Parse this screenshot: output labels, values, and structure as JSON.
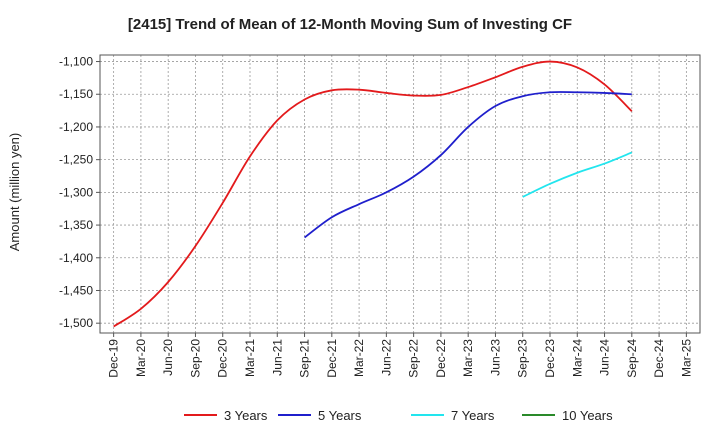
{
  "chart_data": {
    "type": "line",
    "title": "[2415]  Trend of Mean of 12-Month Moving Sum of Investing CF",
    "xlabel": "",
    "ylabel": "Amount (million yen)",
    "x_ticks": [
      "Dec-19",
      "Mar-20",
      "Jun-20",
      "Sep-20",
      "Dec-20",
      "Mar-21",
      "Jun-21",
      "Sep-21",
      "Dec-21",
      "Mar-22",
      "Jun-22",
      "Sep-22",
      "Dec-22",
      "Mar-23",
      "Jun-23",
      "Sep-23",
      "Dec-23",
      "Mar-24",
      "Jun-24",
      "Sep-24",
      "Dec-24",
      "Mar-25"
    ],
    "y_ticks": [
      -1100,
      -1150,
      -1200,
      -1250,
      -1300,
      -1350,
      -1400,
      -1450,
      -1500
    ],
    "y_tick_labels": [
      "-1,100",
      "-1,150",
      "-1,200",
      "-1,250",
      "-1,300",
      "-1,350",
      "-1,400",
      "-1,450",
      "-1,500"
    ],
    "ylim": [
      -1515,
      -1090
    ],
    "grid": true,
    "legend_position": "bottom",
    "series": [
      {
        "name": "3 Years",
        "color": "#e31a1c",
        "x": [
          "Dec-19",
          "Mar-20",
          "Jun-20",
          "Sep-20",
          "Dec-20",
          "Mar-21",
          "Jun-21",
          "Sep-21",
          "Dec-21",
          "Mar-22",
          "Jun-22",
          "Sep-22",
          "Dec-22",
          "Mar-23",
          "Jun-23",
          "Sep-23",
          "Dec-23",
          "Mar-24",
          "Jun-24",
          "Sep-24"
        ],
        "values": [
          -1505,
          -1478,
          -1437,
          -1382,
          -1316,
          -1245,
          -1190,
          -1158,
          -1144,
          -1143,
          -1148,
          -1152,
          -1151,
          -1139,
          -1124,
          -1108,
          -1100,
          -1109,
          -1135,
          -1176
        ]
      },
      {
        "name": "5 Years",
        "color": "#1f1fcc",
        "x": [
          "Sep-21",
          "Dec-21",
          "Mar-22",
          "Jun-22",
          "Sep-22",
          "Dec-22",
          "Mar-23",
          "Jun-23",
          "Sep-23",
          "Dec-23",
          "Mar-24",
          "Jun-24",
          "Sep-24"
        ],
        "values": [
          -1369,
          -1338,
          -1318,
          -1300,
          -1276,
          -1243,
          -1200,
          -1168,
          -1153,
          -1147,
          -1147,
          -1148,
          -1150
        ]
      },
      {
        "name": "7 Years",
        "color": "#22e5ee",
        "x": [
          "Sep-23",
          "Dec-23",
          "Mar-24",
          "Jun-24",
          "Sep-24"
        ],
        "values": [
          -1307,
          -1287,
          -1270,
          -1256,
          -1239
        ]
      },
      {
        "name": "10 Years",
        "color": "#2a8a2a",
        "x": [],
        "values": []
      }
    ]
  }
}
